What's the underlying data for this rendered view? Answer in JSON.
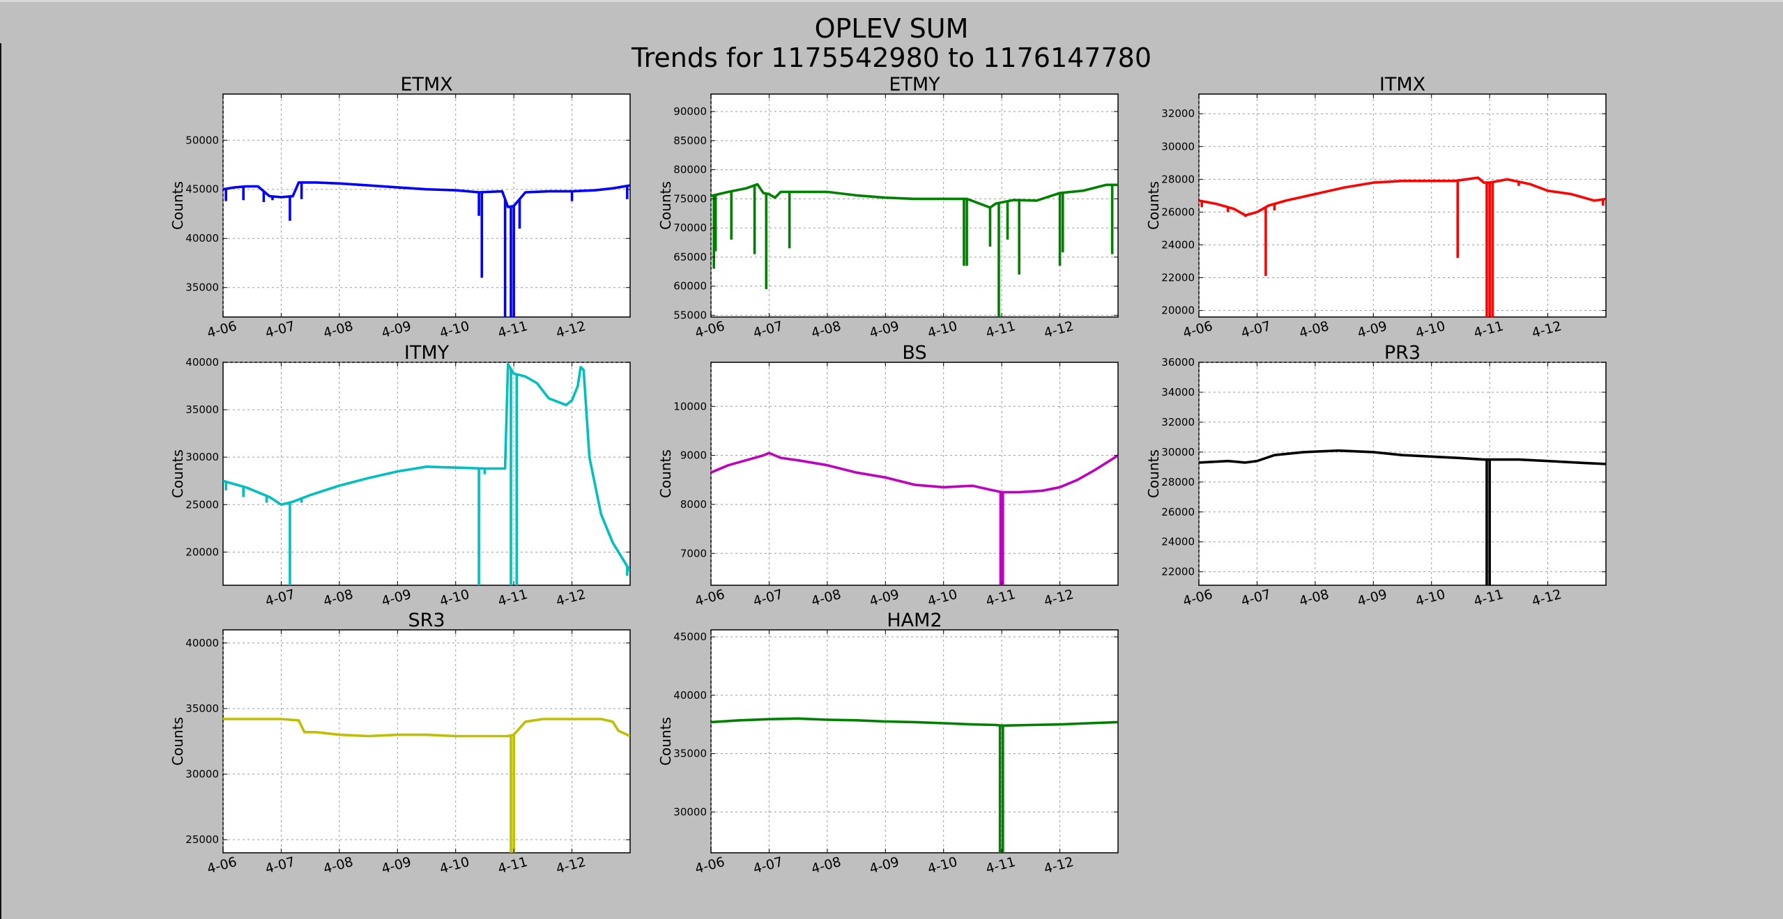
{
  "figure": {
    "title_line1": "OPLEV SUM",
    "title_line2": "Trends for 1175542980 to 1176147780",
    "background": "#bfbfbf"
  },
  "chart_data": [
    {
      "id": "etmx",
      "type": "line",
      "title": "ETMX",
      "ylabel": "Counts",
      "xlabel": "",
      "color": "#0000ff",
      "xlim": [
        6.0,
        13.0
      ],
      "ylim": [
        32000,
        54700
      ],
      "xticks": [
        6,
        7,
        8,
        9,
        10,
        11,
        12
      ],
      "xtick_labels": [
        "4-06",
        "4-07",
        "4-08",
        "4-09",
        "4-10",
        "4-11",
        "4-12"
      ],
      "yticks": [
        35000,
        40000,
        45000,
        50000
      ],
      "grid": true,
      "x": [
        6.0,
        6.2,
        6.4,
        6.6,
        6.8,
        7.0,
        7.2,
        7.3,
        7.6,
        8.0,
        8.5,
        9.0,
        9.5,
        10.0,
        10.4,
        10.8,
        10.9,
        11.0,
        11.2,
        11.6,
        12.0,
        12.4,
        12.7,
        13.0
      ],
      "y": [
        45000,
        45200,
        45300,
        45300,
        44300,
        44200,
        44300,
        45700,
        45700,
        45600,
        45400,
        45200,
        45000,
        44900,
        44700,
        44800,
        43200,
        43300,
        44700,
        44800,
        44800,
        44900,
        45100,
        45400
      ],
      "spikes": [
        {
          "x": 6.05,
          "y": 43800
        },
        {
          "x": 6.35,
          "y": 43900
        },
        {
          "x": 6.7,
          "y": 43700
        },
        {
          "x": 6.85,
          "y": 43900
        },
        {
          "x": 7.15,
          "y": 41800
        },
        {
          "x": 7.35,
          "y": 44000
        },
        {
          "x": 10.4,
          "y": 42300
        },
        {
          "x": 10.45,
          "y": 36000
        },
        {
          "x": 10.85,
          "y": 32000
        },
        {
          "x": 10.95,
          "y": 32000
        },
        {
          "x": 11.0,
          "y": 32000
        },
        {
          "x": 11.1,
          "y": 41000
        },
        {
          "x": 12.0,
          "y": 43800
        },
        {
          "x": 12.95,
          "y": 44000
        }
      ]
    },
    {
      "id": "etmy",
      "type": "line",
      "title": "ETMY",
      "ylabel": "Counts",
      "xlabel": "",
      "color": "#008000",
      "xlim": [
        6.0,
        13.0
      ],
      "ylim": [
        54700,
        93000
      ],
      "xticks": [
        6,
        7,
        8,
        9,
        10,
        11,
        12
      ],
      "xtick_labels": [
        "4-06",
        "4-07",
        "4-08",
        "4-09",
        "4-10",
        "4-11",
        "4-12"
      ],
      "yticks": [
        55000,
        60000,
        65000,
        70000,
        75000,
        80000,
        85000,
        90000
      ],
      "grid": true,
      "x": [
        6.0,
        6.3,
        6.6,
        6.8,
        6.9,
        7.0,
        7.1,
        7.2,
        7.5,
        8.0,
        8.5,
        9.0,
        9.5,
        10.0,
        10.4,
        10.8,
        10.9,
        11.2,
        11.6,
        12.0,
        12.4,
        12.8,
        13.0
      ],
      "y": [
        75500,
        76200,
        76800,
        77500,
        76000,
        75800,
        75200,
        76200,
        76200,
        76200,
        75600,
        75200,
        75000,
        75000,
        75000,
        73500,
        74200,
        74800,
        74700,
        76000,
        76400,
        77400,
        77400
      ],
      "spikes": [
        {
          "x": 6.05,
          "y": 63000
        },
        {
          "x": 6.08,
          "y": 66000
        },
        {
          "x": 6.35,
          "y": 68000
        },
        {
          "x": 6.75,
          "y": 65500
        },
        {
          "x": 6.95,
          "y": 59500
        },
        {
          "x": 7.35,
          "y": 66500
        },
        {
          "x": 10.35,
          "y": 63500
        },
        {
          "x": 10.4,
          "y": 63500
        },
        {
          "x": 10.8,
          "y": 66800
        },
        {
          "x": 10.95,
          "y": 54700
        },
        {
          "x": 11.1,
          "y": 68000
        },
        {
          "x": 11.3,
          "y": 62000
        },
        {
          "x": 12.0,
          "y": 63500
        },
        {
          "x": 12.05,
          "y": 65800
        },
        {
          "x": 12.9,
          "y": 65500
        }
      ]
    },
    {
      "id": "itmx",
      "type": "line",
      "title": "ITMX",
      "ylabel": "Counts",
      "xlabel": "",
      "color": "#ff0000",
      "xlim": [
        6.0,
        13.0
      ],
      "ylim": [
        19600,
        33200
      ],
      "xticks": [
        6,
        7,
        8,
        9,
        10,
        11,
        12
      ],
      "xtick_labels": [
        "4-06",
        "4-07",
        "4-08",
        "4-09",
        "4-10",
        "4-11",
        "4-12"
      ],
      "yticks": [
        20000,
        22000,
        24000,
        26000,
        28000,
        30000,
        32000
      ],
      "grid": true,
      "x": [
        6.0,
        6.3,
        6.6,
        6.8,
        7.0,
        7.2,
        7.5,
        8.0,
        8.5,
        9.0,
        9.5,
        10.0,
        10.4,
        10.8,
        10.9,
        11.0,
        11.3,
        11.7,
        12.0,
        12.4,
        12.8,
        13.0
      ],
      "y": [
        26700,
        26500,
        26200,
        25800,
        26000,
        26400,
        26700,
        27100,
        27500,
        27800,
        27900,
        27900,
        27900,
        28100,
        27800,
        27800,
        28000,
        27700,
        27300,
        27100,
        26700,
        26800
      ],
      "spikes": [
        {
          "x": 6.05,
          "y": 26300
        },
        {
          "x": 6.5,
          "y": 26000
        },
        {
          "x": 6.8,
          "y": 25700
        },
        {
          "x": 7.15,
          "y": 22100
        },
        {
          "x": 7.3,
          "y": 26100
        },
        {
          "x": 10.45,
          "y": 23200
        },
        {
          "x": 10.95,
          "y": 19600
        },
        {
          "x": 11.0,
          "y": 19600
        },
        {
          "x": 11.05,
          "y": 19600
        },
        {
          "x": 11.5,
          "y": 27600
        },
        {
          "x": 12.95,
          "y": 26400
        }
      ]
    },
    {
      "id": "itmy",
      "type": "line",
      "title": "ITMY",
      "ylabel": "Counts",
      "xlabel": "",
      "color": "#00bfbf",
      "xlim": [
        6.0,
        13.0
      ],
      "ylim": [
        16500,
        40000
      ],
      "xticks": [
        7,
        8,
        9,
        10,
        11,
        12
      ],
      "xtick_labels": [
        "4-07",
        "4-08",
        "4-09",
        "4-10",
        "4-11",
        "4-12"
      ],
      "yticks": [
        20000,
        25000,
        30000,
        35000,
        40000
      ],
      "grid": true,
      "x": [
        6.0,
        6.4,
        6.8,
        7.0,
        7.2,
        7.5,
        8.0,
        8.5,
        9.0,
        9.5,
        10.0,
        10.5,
        10.85,
        10.9,
        11.0,
        11.2,
        11.4,
        11.6,
        11.9,
        12.0,
        12.1,
        12.15,
        12.2,
        12.3,
        12.5,
        12.7,
        12.9,
        13.0
      ],
      "y": [
        27500,
        26800,
        25800,
        25000,
        25300,
        26000,
        27000,
        27800,
        28500,
        29000,
        28900,
        28800,
        28800,
        39800,
        38800,
        38500,
        37800,
        36200,
        35500,
        36000,
        37500,
        39500,
        39200,
        30000,
        24000,
        21000,
        19000,
        18000
      ],
      "spikes": [
        {
          "x": 6.05,
          "y": 26500
        },
        {
          "x": 6.35,
          "y": 25800
        },
        {
          "x": 6.75,
          "y": 25200
        },
        {
          "x": 7.15,
          "y": 16500
        },
        {
          "x": 7.35,
          "y": 25200
        },
        {
          "x": 10.4,
          "y": 16500
        },
        {
          "x": 10.5,
          "y": 28200
        },
        {
          "x": 10.95,
          "y": 16500
        },
        {
          "x": 11.05,
          "y": 16500
        },
        {
          "x": 12.95,
          "y": 17500
        }
      ]
    },
    {
      "id": "bs",
      "type": "line",
      "title": "BS",
      "ylabel": "Counts",
      "xlabel": "",
      "color": "#bf00bf",
      "xlim": [
        6.0,
        13.0
      ],
      "ylim": [
        6350,
        10900
      ],
      "xticks": [
        6,
        7,
        8,
        9,
        10,
        11,
        12
      ],
      "xtick_labels": [
        "4-06",
        "4-07",
        "4-08",
        "4-09",
        "4-10",
        "4-11",
        "4-12"
      ],
      "yticks": [
        7000,
        8000,
        9000,
        10000
      ],
      "grid": true,
      "x": [
        6.0,
        6.3,
        6.6,
        6.9,
        7.0,
        7.2,
        7.5,
        8.0,
        8.5,
        9.0,
        9.5,
        10.0,
        10.5,
        10.8,
        11.0,
        11.3,
        11.7,
        12.0,
        12.3,
        12.6,
        12.8,
        13.0
      ],
      "y": [
        8650,
        8800,
        8900,
        9000,
        9050,
        8950,
        8900,
        8800,
        8650,
        8550,
        8400,
        8350,
        8380,
        8300,
        8250,
        8250,
        8280,
        8350,
        8500,
        8700,
        8850,
        9000
      ],
      "spikes": [
        {
          "x": 10.98,
          "y": 6350
        },
        {
          "x": 11.02,
          "y": 6350
        }
      ]
    },
    {
      "id": "pr3",
      "type": "line",
      "title": "PR3",
      "ylabel": "Counts",
      "xlabel": "",
      "color": "#000000",
      "xlim": [
        6.0,
        13.0
      ],
      "ylim": [
        21100,
        36000
      ],
      "xticks": [
        6,
        7,
        8,
        9,
        10,
        11,
        12
      ],
      "xtick_labels": [
        "4-06",
        "4-07",
        "4-08",
        "4-09",
        "4-10",
        "4-11",
        "4-12"
      ],
      "yticks": [
        22000,
        24000,
        26000,
        28000,
        30000,
        32000,
        34000,
        36000
      ],
      "grid": true,
      "x": [
        6.0,
        6.5,
        6.8,
        7.0,
        7.3,
        7.8,
        8.4,
        9.0,
        9.5,
        10.0,
        10.5,
        10.9,
        11.0,
        11.5,
        12.0,
        12.5,
        13.0
      ],
      "y": [
        29300,
        29400,
        29300,
        29400,
        29800,
        30000,
        30100,
        30000,
        29800,
        29700,
        29600,
        29500,
        29500,
        29500,
        29400,
        29300,
        29200
      ],
      "spikes": [
        {
          "x": 10.95,
          "y": 21100
        },
        {
          "x": 11.0,
          "y": 21100
        }
      ]
    },
    {
      "id": "sr3",
      "type": "line",
      "title": "SR3",
      "ylabel": "Counts",
      "xlabel": "",
      "color": "#bfbf00",
      "xlim": [
        6.0,
        13.0
      ],
      "ylim": [
        24000,
        41000
      ],
      "xticks": [
        6,
        7,
        8,
        9,
        10,
        11,
        12
      ],
      "xtick_labels": [
        "4-06",
        "4-07",
        "4-08",
        "4-09",
        "4-10",
        "4-11",
        "4-12"
      ],
      "yticks": [
        25000,
        30000,
        35000,
        40000
      ],
      "grid": true,
      "x": [
        6.0,
        6.5,
        7.0,
        7.3,
        7.4,
        7.6,
        8.0,
        8.5,
        9.0,
        9.5,
        10.0,
        10.5,
        10.9,
        11.0,
        11.2,
        11.5,
        12.0,
        12.5,
        12.7,
        12.8,
        13.0
      ],
      "y": [
        34200,
        34200,
        34200,
        34100,
        33200,
        33200,
        33000,
        32900,
        33000,
        33000,
        32900,
        32900,
        32900,
        33000,
        34000,
        34200,
        34200,
        34200,
        34000,
        33300,
        32900
      ],
      "spikes": [
        {
          "x": 10.95,
          "y": 24000
        },
        {
          "x": 11.0,
          "y": 24000
        }
      ]
    },
    {
      "id": "ham2",
      "type": "line",
      "title": "HAM2",
      "ylabel": "Counts",
      "xlabel": "",
      "color": "#008000",
      "xlim": [
        6.0,
        13.0
      ],
      "ylim": [
        26500,
        45600
      ],
      "xticks": [
        6,
        7,
        8,
        9,
        10,
        11,
        12
      ],
      "xtick_labels": [
        "4-06",
        "4-07",
        "4-08",
        "4-09",
        "4-10",
        "4-11",
        "4-12"
      ],
      "yticks": [
        30000,
        35000,
        40000,
        45000
      ],
      "grid": true,
      "x": [
        6.0,
        6.5,
        7.0,
        7.5,
        8.0,
        8.5,
        9.0,
        9.5,
        10.0,
        10.5,
        10.9,
        11.0,
        11.5,
        12.0,
        12.5,
        13.0
      ],
      "y": [
        37700,
        37850,
        37950,
        38000,
        37900,
        37850,
        37750,
        37700,
        37600,
        37500,
        37450,
        37400,
        37450,
        37500,
        37600,
        37700
      ],
      "spikes": [
        {
          "x": 10.97,
          "y": 26500
        },
        {
          "x": 11.02,
          "y": 26500
        }
      ]
    }
  ]
}
